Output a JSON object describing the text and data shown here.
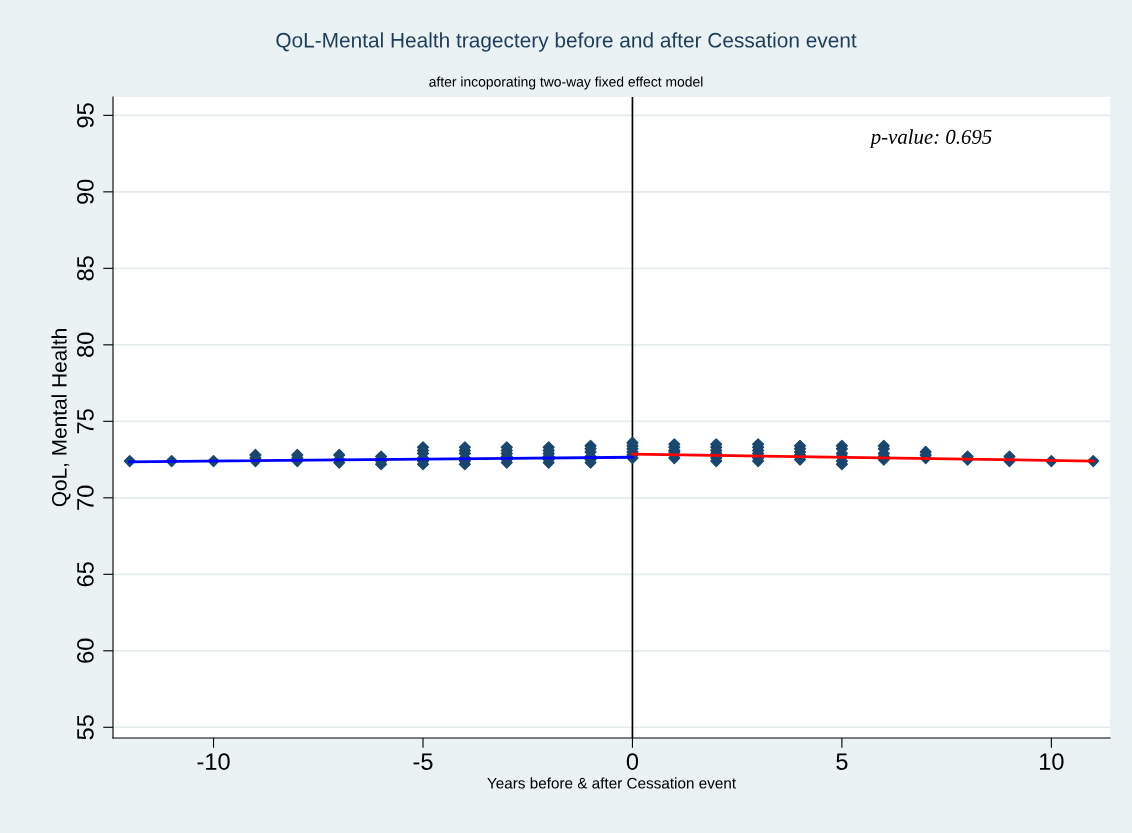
{
  "chart_data": {
    "type": "scatter",
    "title": "QoL-Mental Health tragectery before and after Cessation event",
    "subtitle": "after incoporating two-way fixed effect model",
    "xlabel": "Years before & after Cessation event",
    "ylabel": "QoL, Mental Health",
    "annotations": [
      "p-value: 0.695"
    ],
    "series": [
      {
        "color": "#1a476f",
        "marker": "diamond",
        "x": [
          -12,
          -11,
          -10,
          -9,
          -9,
          -9,
          -8,
          -8,
          -8,
          -7,
          -7,
          -7,
          -6,
          -6,
          -6,
          -5,
          -5,
          -5,
          -5,
          -5,
          -5,
          -4,
          -4,
          -4,
          -4,
          -4,
          -4,
          -3,
          -3,
          -3,
          -3,
          -3,
          -3,
          -2,
          -2,
          -2,
          -2,
          -2,
          -2,
          -1,
          -1,
          -1,
          -1,
          -1,
          -1,
          0,
          0,
          0,
          0,
          0,
          0,
          1,
          1,
          1,
          1,
          1,
          1,
          2,
          2,
          2,
          2,
          2,
          2,
          3,
          3,
          3,
          3,
          3,
          3,
          4,
          4,
          4,
          4,
          4,
          5,
          5,
          5,
          5,
          5,
          5,
          6,
          6,
          6,
          6,
          6,
          7,
          7,
          7,
          8,
          8,
          9,
          9,
          10,
          11
        ],
        "values": [
          72.4,
          72.4,
          72.4,
          72.4,
          72.6,
          72.8,
          72.4,
          72.6,
          72.8,
          72.3,
          72.5,
          72.8,
          72.2,
          72.4,
          72.7,
          72.2,
          72.4,
          72.6,
          72.9,
          73.1,
          73.3,
          72.2,
          72.4,
          72.6,
          72.9,
          73.1,
          73.3,
          72.3,
          72.5,
          72.7,
          72.9,
          73.1,
          73.3,
          72.3,
          72.5,
          72.7,
          72.9,
          73.1,
          73.3,
          72.3,
          72.5,
          72.7,
          73.0,
          73.2,
          73.4,
          72.6,
          72.8,
          73.0,
          73.2,
          73.4,
          73.6,
          72.6,
          72.8,
          73.0,
          73.1,
          73.3,
          73.5,
          72.4,
          72.6,
          72.9,
          73.1,
          73.3,
          73.5,
          72.4,
          72.6,
          72.9,
          73.1,
          73.3,
          73.5,
          72.5,
          72.8,
          73.0,
          73.2,
          73.4,
          72.2,
          72.4,
          72.7,
          72.9,
          73.2,
          73.4,
          72.5,
          72.7,
          72.9,
          73.2,
          73.4,
          72.6,
          72.8,
          73.0,
          72.5,
          72.7,
          72.4,
          72.7,
          72.4,
          72.4
        ]
      },
      {
        "type": "line",
        "color": "#0000ff",
        "x": [
          -12,
          0
        ],
        "values": [
          72.35,
          72.65
        ]
      },
      {
        "type": "line",
        "color": "#ff0000",
        "x": [
          0,
          11
        ],
        "values": [
          72.85,
          72.4
        ]
      }
    ],
    "ref_lines": [
      {
        "axis": "x",
        "value": 0,
        "color": "#000000"
      }
    ],
    "xlim": [
      -12.4,
      11.4
    ],
    "xticks": [
      -10,
      -5,
      0,
      5,
      10
    ],
    "ylim": [
      54.3,
      96.2
    ],
    "yticks": [
      55,
      60,
      65,
      70,
      75,
      80,
      85,
      90,
      95
    ],
    "grid": "y",
    "legend": false,
    "line_style": "solid"
  }
}
